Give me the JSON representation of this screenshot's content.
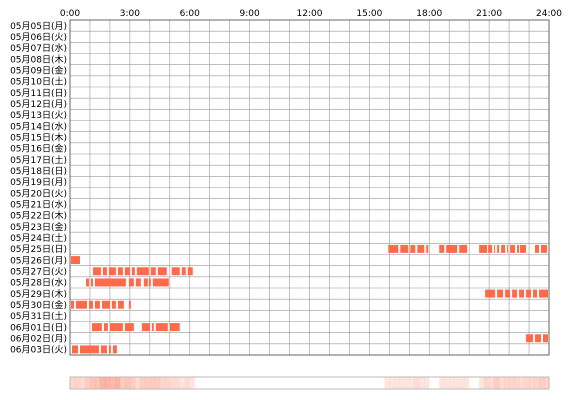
{
  "chart_data": {
    "type": "heatmap",
    "subtype": "timeline",
    "x_unit": "hour",
    "xlim": [
      0,
      24
    ],
    "x_ticks": [
      "0:00",
      "3:00",
      "6:00",
      "9:00",
      "12:00",
      "15:00",
      "18:00",
      "21:00",
      "24:00"
    ],
    "grid": true,
    "colors": {
      "bar": "#ff6a4a",
      "grid": "#999999",
      "border": "#666666",
      "summary_border": "#bbbbbb"
    },
    "rows": [
      {
        "label": "05月05日(月)",
        "segments": []
      },
      {
        "label": "05月06日(火)",
        "segments": []
      },
      {
        "label": "05月07日(水)",
        "segments": []
      },
      {
        "label": "05月08日(木)",
        "segments": []
      },
      {
        "label": "05月09日(金)",
        "segments": []
      },
      {
        "label": "05月10日(土)",
        "segments": []
      },
      {
        "label": "05月11日(日)",
        "segments": []
      },
      {
        "label": "05月12日(月)",
        "segments": []
      },
      {
        "label": "05月13日(火)",
        "segments": []
      },
      {
        "label": "05月14日(水)",
        "segments": []
      },
      {
        "label": "05月15日(木)",
        "segments": []
      },
      {
        "label": "05月16日(金)",
        "segments": []
      },
      {
        "label": "05月17日(土)",
        "segments": []
      },
      {
        "label": "05月18日(日)",
        "segments": []
      },
      {
        "label": "05月19日(月)",
        "segments": []
      },
      {
        "label": "05月20日(火)",
        "segments": []
      },
      {
        "label": "05月21日(水)",
        "segments": []
      },
      {
        "label": "05月22日(木)",
        "segments": []
      },
      {
        "label": "05月23日(金)",
        "segments": []
      },
      {
        "label": "05月24日(土)",
        "segments": []
      },
      {
        "label": "05月25日(日)",
        "segments": [
          [
            15.95,
            16.45
          ],
          [
            16.55,
            16.95
          ],
          [
            17.05,
            17.3
          ],
          [
            17.4,
            17.75
          ],
          [
            17.85,
            17.95
          ],
          [
            18.5,
            18.75
          ],
          [
            18.85,
            19.4
          ],
          [
            19.5,
            19.9
          ],
          [
            20.5,
            20.9
          ],
          [
            20.95,
            21.15
          ],
          [
            21.25,
            21.3
          ],
          [
            21.4,
            21.5
          ],
          [
            21.6,
            21.8
          ],
          [
            21.9,
            21.95
          ],
          [
            22.05,
            22.3
          ],
          [
            22.4,
            22.5
          ],
          [
            22.55,
            22.85
          ],
          [
            23.3,
            23.5
          ],
          [
            23.6,
            23.9
          ]
        ]
      },
      {
        "label": "05月26日(月)",
        "segments": [
          [
            0.05,
            0.5
          ]
        ]
      },
      {
        "label": "05月27日(火)",
        "segments": [
          [
            1.15,
            1.55
          ],
          [
            1.65,
            1.85
          ],
          [
            1.95,
            2.3
          ],
          [
            2.4,
            2.65
          ],
          [
            2.75,
            3.0
          ],
          [
            3.1,
            3.25
          ],
          [
            3.35,
            3.95
          ],
          [
            4.05,
            4.3
          ],
          [
            4.4,
            4.85
          ],
          [
            5.1,
            5.5
          ],
          [
            5.6,
            5.8
          ],
          [
            5.9,
            6.15
          ]
        ]
      },
      {
        "label": "05月28日(水)",
        "segments": [
          [
            0.8,
            0.95
          ],
          [
            1.05,
            1.15
          ],
          [
            1.25,
            2.8
          ],
          [
            2.95,
            3.2
          ],
          [
            3.3,
            3.55
          ],
          [
            3.7,
            3.9
          ],
          [
            3.95,
            4.05
          ],
          [
            4.15,
            4.95
          ]
        ]
      },
      {
        "label": "05月29日(木)",
        "segments": [
          [
            20.8,
            21.3
          ],
          [
            21.4,
            21.7
          ],
          [
            21.8,
            22.05
          ],
          [
            22.15,
            22.4
          ],
          [
            22.5,
            22.75
          ],
          [
            22.85,
            23.1
          ],
          [
            23.2,
            23.4
          ],
          [
            23.5,
            23.95
          ]
        ]
      },
      {
        "label": "05月30日(金)",
        "segments": [
          [
            0.05,
            0.2
          ],
          [
            0.3,
            0.85
          ],
          [
            0.95,
            1.15
          ],
          [
            1.25,
            1.5
          ],
          [
            1.6,
            2.0
          ],
          [
            2.1,
            2.3
          ],
          [
            2.4,
            2.7
          ],
          [
            2.95,
            3.05
          ]
        ]
      },
      {
        "label": "05月31日(土)",
        "segments": []
      },
      {
        "label": "06月01日(日)",
        "segments": [
          [
            1.1,
            1.6
          ],
          [
            1.7,
            1.9
          ],
          [
            2.0,
            2.65
          ],
          [
            2.75,
            3.2
          ],
          [
            3.6,
            4.0
          ],
          [
            4.1,
            4.2
          ],
          [
            4.3,
            4.9
          ],
          [
            5.0,
            5.5
          ]
        ]
      },
      {
        "label": "06月02日(月)",
        "segments": [
          [
            22.85,
            23.2
          ],
          [
            23.3,
            23.6
          ],
          [
            23.7,
            23.95
          ]
        ]
      },
      {
        "label": "06月03日(火)",
        "segments": [
          [
            0.1,
            0.4
          ],
          [
            0.5,
            1.45
          ],
          [
            1.55,
            1.85
          ],
          [
            1.95,
            2.05
          ],
          [
            2.15,
            2.35
          ]
        ]
      }
    ]
  }
}
